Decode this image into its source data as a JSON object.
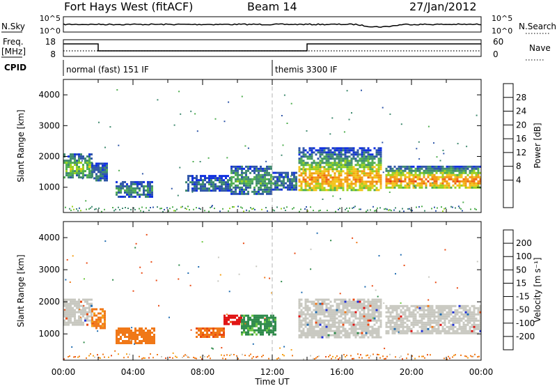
{
  "header": {
    "radar": "Fort Hays West (fitACF)",
    "beam": "Beam 14",
    "date": "27/Jan/2012"
  },
  "side_labels": {
    "n_sky": "N.Sky",
    "freq_top": "Freq.",
    "freq_unit": "[MHz]",
    "cpid": "CPID",
    "n_search": "N.Search",
    "nave": "Nave"
  },
  "noise_panel": {
    "left_ticks": [
      "10^5",
      "10^0"
    ],
    "right_ticks": [
      "10^5",
      "10^0"
    ]
  },
  "freq_panel": {
    "left_ticks": [
      "18",
      "8"
    ],
    "right_ticks": [
      "60",
      "0"
    ]
  },
  "cpid_panel": {
    "modes": [
      {
        "label": "normal (fast) 151 IF",
        "start_hour": 0
      },
      {
        "label": "themis 3300 IF",
        "start_hour": 12
      }
    ]
  },
  "colors": {
    "power_scale": [
      "#1030e0",
      "#2e55a8",
      "#3f8a6f",
      "#4fae4f",
      "#9ad11e",
      "#f2c41a",
      "#f39a12",
      "#ef6614",
      "#e8320c"
    ],
    "velocity_scale": [
      "#1f2fd6",
      "#1e6bb0",
      "#2e8a4a",
      "#6ec840",
      "#c8c8c0",
      "#f5a018",
      "#f07818",
      "#ea4a12",
      "#e01010"
    ],
    "trace": "#000000",
    "dash": "#b5b5b5"
  },
  "chart_data": [
    {
      "type": "heatmap",
      "name": "power",
      "ylabel": "Slant Range [km]",
      "xlabel": "Time UT",
      "y_ticks": [
        1000,
        2000,
        3000,
        4000
      ],
      "ylim": [
        180,
        4500
      ],
      "xlim": [
        0,
        24
      ],
      "colorbar_label": "Power [dB]",
      "colorbar_ticks": [
        "4",
        "8",
        "12",
        "16",
        "20",
        "24",
        "28"
      ],
      "color_range": [
        0,
        32
      ],
      "bands": [
        {
          "t0": 0.0,
          "t1": 1.6,
          "r0": 1300,
          "r1": 2100,
          "v": 14,
          "center": 1650
        },
        {
          "t0": 1.6,
          "t1": 2.5,
          "r0": 1200,
          "r1": 1800,
          "v": 8,
          "center": 1500
        },
        {
          "t0": 3.0,
          "t1": 5.1,
          "r0": 700,
          "r1": 1200,
          "v": 9,
          "center": 950
        },
        {
          "t0": 7.0,
          "t1": 9.6,
          "r0": 900,
          "r1": 1400,
          "v": 7,
          "center": 1100
        },
        {
          "t0": 9.6,
          "t1": 12.0,
          "r0": 800,
          "r1": 1700,
          "v": 11,
          "center": 1250
        },
        {
          "t0": 12.0,
          "t1": 13.4,
          "r0": 900,
          "r1": 1500,
          "v": 8,
          "center": 1200
        },
        {
          "t0": 13.5,
          "t1": 18.2,
          "r0": 900,
          "r1": 2300,
          "v": 22,
          "center": 1300
        },
        {
          "t0": 18.5,
          "t1": 24.0,
          "r0": 1000,
          "r1": 1700,
          "v": 24,
          "center": 1250
        }
      ],
      "near_range_strip": {
        "r0": 230,
        "r1": 400,
        "v": 10
      }
    },
    {
      "type": "heatmap",
      "name": "velocity",
      "ylabel": "Slant Range [km]",
      "xlabel": "Time UT",
      "x_tick_labels": [
        "00:00",
        "04:00",
        "08:00",
        "12:00",
        "16:00",
        "20:00",
        "00:00"
      ],
      "x_ticks": [
        0,
        4,
        8,
        12,
        16,
        20,
        24
      ],
      "y_ticks": [
        1000,
        2000,
        3000,
        4000
      ],
      "ylim": [
        180,
        4500
      ],
      "xlim": [
        0,
        24
      ],
      "colorbar_label": "Velocity [m s⁻¹]",
      "colorbar_ticks": [
        "200",
        "100",
        "50",
        "15",
        "-15",
        "-50",
        "-100",
        "-200"
      ],
      "bands": [
        {
          "t0": 0.0,
          "t1": 1.6,
          "r0": 1300,
          "r1": 2100,
          "v": 0
        },
        {
          "t0": 1.6,
          "t1": 2.4,
          "r0": 1200,
          "r1": 1800,
          "v": -40
        },
        {
          "t0": 3.0,
          "t1": 5.2,
          "r0": 700,
          "r1": 1200,
          "v": -60
        },
        {
          "t0": 7.6,
          "t1": 9.2,
          "r0": 900,
          "r1": 1200,
          "v": -70
        },
        {
          "t0": 9.2,
          "t1": 10.2,
          "r0": 1300,
          "r1": 1600,
          "v": -160
        },
        {
          "t0": 10.2,
          "t1": 12.2,
          "r0": 1000,
          "r1": 1600,
          "v": 40
        },
        {
          "t0": 13.5,
          "t1": 18.2,
          "r0": 900,
          "r1": 2100,
          "v": 0
        },
        {
          "t0": 18.5,
          "t1": 24.0,
          "r0": 1000,
          "r1": 1900,
          "v": 0
        }
      ],
      "near_range_strip": {
        "r0": 230,
        "r1": 400,
        "v": -45
      }
    }
  ]
}
